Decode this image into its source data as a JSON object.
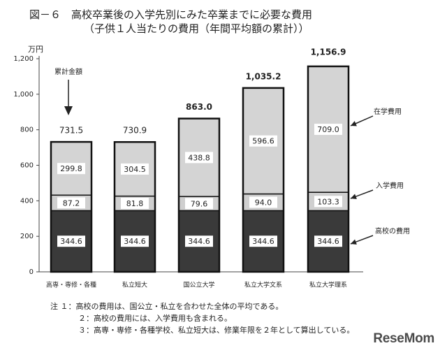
{
  "chart_data": {
    "type": "bar",
    "stacked": true,
    "title": "図－６　高校卒業後の入学先別にみた卒業までに必要な費用",
    "subtitle": "（子供１人当たりの費用（年間平均額の累計））",
    "unit_label": "万円",
    "ylim": [
      0,
      1200
    ],
    "yticks": [
      "0",
      "200",
      "400",
      "600",
      "800",
      "1,000",
      "1,200"
    ],
    "ytick_values": [
      0,
      200,
      400,
      600,
      800,
      1000,
      1200
    ],
    "categories": [
      "高専・専修・各種",
      "私立短大",
      "国公立大学",
      "私立大学文系",
      "私立大学理系"
    ],
    "series": [
      {
        "name": "高校の費用",
        "values": [
          344.6,
          344.6,
          344.6,
          344.6,
          344.6
        ],
        "labels": [
          "344.6",
          "344.6",
          "344.6",
          "344.6",
          "344.6"
        ]
      },
      {
        "name": "入学費用",
        "values": [
          87.2,
          81.8,
          79.6,
          94.0,
          103.3
        ],
        "labels": [
          "87.2",
          "81.8",
          "79.6",
          "94.0",
          "103.3"
        ]
      },
      {
        "name": "在学費用",
        "values": [
          299.8,
          304.5,
          438.8,
          596.6,
          709.0
        ],
        "labels": [
          "299.8",
          "304.5",
          "438.8",
          "596.6",
          "709.0"
        ]
      }
    ],
    "totals": [
      731.5,
      730.9,
      863.0,
      1035.2,
      1156.9
    ],
    "total_labels": [
      "731.5",
      "730.9",
      "863.0",
      "1,035.2",
      "1,156.9"
    ],
    "annotations": {
      "cumulative": "累計金額",
      "zaigaku": "在学費用",
      "nyugaku": "入学費用",
      "koko": "高校の費用"
    },
    "colors": {
      "koko": "#3a3a3a",
      "nyugaku": "#cfcfcf",
      "zaigaku": "#d4d4d4",
      "label_bg": "#ffffff",
      "bar_border": "#111111"
    },
    "grid": false
  },
  "notes": [
    "注 １：高校の費用は、国公立・私立を合わせた全体の平均である。",
    "２：高校の費用には、入学費用も含まれる。",
    "３：高専・専修・各種学校、私立短大は、修業年限を２年として算出している。"
  ],
  "watermark": "ReseMom"
}
